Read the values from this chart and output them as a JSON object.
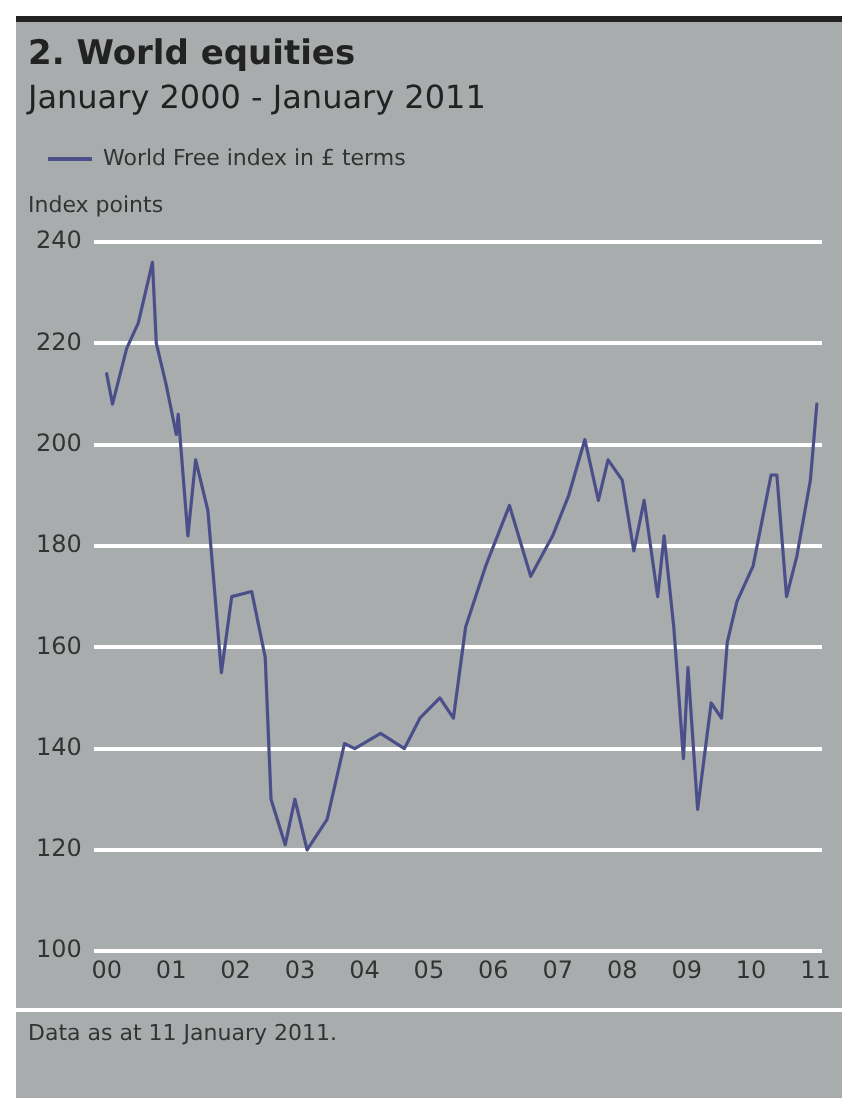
{
  "chart_data": {
    "type": "line",
    "title": "2. World equities",
    "subtitle": "January 2000 - January 2011",
    "ylabel": "Index points",
    "annotations": [
      "Data as at 11 January 2011."
    ],
    "series": [
      {
        "name": "World Free index in £ terms",
        "color": "#4a4f8a",
        "x": [
          2000.0,
          2000.09,
          2000.31,
          2000.49,
          2000.71,
          2000.77,
          2000.92,
          2001.08,
          2001.11,
          2001.26,
          2001.38,
          2001.57,
          2001.78,
          2001.94,
          2002.25,
          2002.46,
          2002.55,
          2002.77,
          2002.92,
          2003.11,
          2003.42,
          2003.69,
          2003.85,
          2004.25,
          2004.62,
          2004.86,
          2005.17,
          2005.38,
          2005.57,
          2005.88,
          2006.25,
          2006.58,
          2006.92,
          2007.17,
          2007.42,
          2007.63,
          2007.78,
          2008.0,
          2008.18,
          2008.34,
          2008.55,
          2008.65,
          2008.8,
          2008.95,
          2009.02,
          2009.17,
          2009.38,
          2009.54,
          2009.63,
          2009.78,
          2010.03,
          2010.31,
          2010.4,
          2010.55,
          2010.71,
          2010.92,
          2011.02
        ],
        "values": [
          214,
          208,
          219,
          224,
          236,
          220,
          212,
          202,
          206,
          182,
          197,
          187,
          155,
          170,
          171,
          158,
          130,
          121,
          130,
          120,
          126,
          141,
          140,
          143,
          140,
          146,
          150,
          146,
          164,
          176,
          188,
          174,
          182,
          190,
          201,
          189,
          197,
          193,
          179,
          189,
          170,
          182,
          164,
          138,
          156,
          128,
          149,
          146,
          161,
          169,
          176,
          194,
          194,
          170,
          178,
          193,
          208
        ]
      }
    ],
    "xlim": [
      1999.8,
      2011.1
    ],
    "xticks": [
      {
        "value": 2000,
        "label": "00"
      },
      {
        "value": 2001,
        "label": "01"
      },
      {
        "value": 2002,
        "label": "02"
      },
      {
        "value": 2003,
        "label": "03"
      },
      {
        "value": 2004,
        "label": "04"
      },
      {
        "value": 2005,
        "label": "05"
      },
      {
        "value": 2006,
        "label": "06"
      },
      {
        "value": 2007,
        "label": "07"
      },
      {
        "value": 2008,
        "label": "08"
      },
      {
        "value": 2009,
        "label": "09"
      },
      {
        "value": 2010,
        "label": "10"
      },
      {
        "value": 2011,
        "label": "11"
      }
    ],
    "ylim": [
      100,
      240
    ],
    "yticks": [
      100,
      120,
      140,
      160,
      180,
      200,
      220,
      240
    ],
    "grid": "y",
    "legend": "top left",
    "marker": "none",
    "line_style": "solid"
  }
}
